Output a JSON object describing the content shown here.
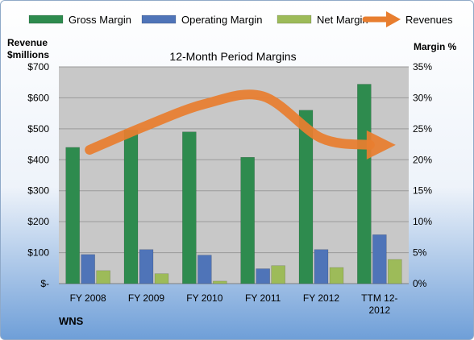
{
  "chart_data": {
    "type": "bar",
    "title": "12-Month Period Margins",
    "y_left_label": [
      "Revenue",
      "$millions"
    ],
    "y_right_label": "Margin %",
    "company": "WNS",
    "categories": [
      "FY 2008",
      "FY 2009",
      "FY 2010",
      "FY 2011",
      "FY 2012",
      "TTM 12-2012"
    ],
    "category_lines": [
      [
        "FY 2008"
      ],
      [
        "FY 2009"
      ],
      [
        "FY 2010"
      ],
      [
        "FY 2011"
      ],
      [
        "FY 2012"
      ],
      [
        "TTM 12-",
        "2012"
      ]
    ],
    "left_axis": {
      "min": 0,
      "max": 700,
      "ticks": [
        "$-",
        "$100",
        "$200",
        "$300",
        "$400",
        "$500",
        "$600",
        "$700"
      ]
    },
    "right_axis": {
      "min": 0,
      "max": 35,
      "ticks": [
        "0%",
        "5%",
        "10%",
        "15%",
        "20%",
        "25%",
        "30%",
        "35%"
      ]
    },
    "grid": true,
    "legend_position": "top",
    "series": [
      {
        "name": "Gross Margin",
        "axis": "right",
        "kind": "bar",
        "color": "#2e8b4e",
        "values": [
          22.0,
          24.8,
          24.5,
          20.4,
          28.0,
          32.2
        ]
      },
      {
        "name": "Operating Margin",
        "axis": "right",
        "kind": "bar",
        "color": "#4f74b8",
        "values": [
          4.7,
          5.5,
          4.6,
          2.4,
          5.5,
          7.9
        ]
      },
      {
        "name": "Net Margin",
        "axis": "right",
        "kind": "bar",
        "color": "#9dbb59",
        "values": [
          2.1,
          1.6,
          0.4,
          2.9,
          2.6,
          3.9
        ]
      },
      {
        "name": "Revenues",
        "axis": "left",
        "kind": "line",
        "color": "#e87e2f",
        "values": [
          432,
          510,
          580,
          605,
          470,
          448
        ]
      }
    ]
  }
}
